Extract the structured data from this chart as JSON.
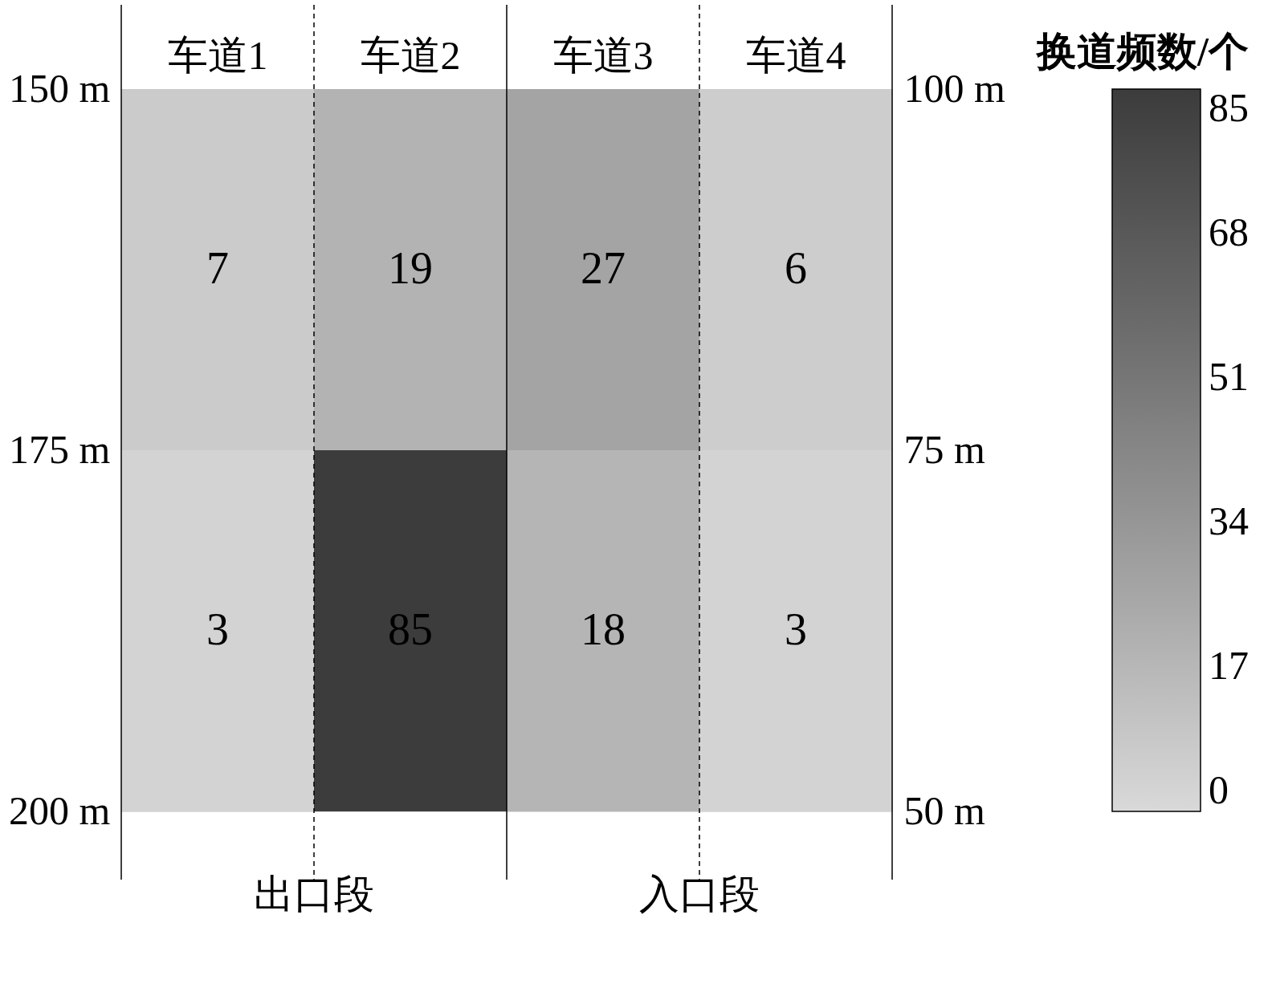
{
  "chart_data": {
    "type": "heatmap",
    "categories": [
      "车道1",
      "车道2",
      "车道3",
      "车道4"
    ],
    "cells": [
      [
        7,
        19,
        27,
        6
      ],
      [
        3,
        85,
        18,
        3
      ]
    ],
    "data_labels": true,
    "ylim": [
      200,
      150
    ],
    "yticks": [
      {
        "value": 150,
        "label": "150 m"
      },
      {
        "value": 175,
        "label": "175 m"
      },
      {
        "value": 200,
        "label": "200 m"
      }
    ],
    "y2lim": [
      50,
      100
    ],
    "y2ticks": [
      {
        "value": 100,
        "label": "100 m"
      },
      {
        "value": 75,
        "label": "75 m"
      },
      {
        "value": 50,
        "label": "50 m"
      }
    ],
    "clabel": "换道频数/个",
    "clim": [
      0,
      85
    ],
    "cticks": [
      0,
      17,
      34,
      51,
      68,
      85
    ],
    "grid": "x",
    "annotations": [
      "出口段",
      "入口段"
    ]
  }
}
